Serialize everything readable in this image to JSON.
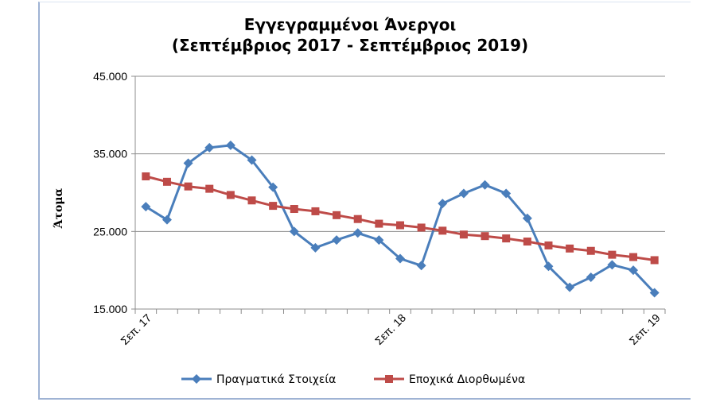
{
  "chart_data": {
    "type": "line",
    "title": "Εγγεγραμμένοι Άνεργοι",
    "subtitle": "(Σεπτέμβριος 2017 - Σεπτέμβριος 2019)",
    "ylabel": "Άτομα",
    "xlabel": "",
    "ylim": [
      15000,
      45000
    ],
    "yticks": [
      15000,
      25000,
      35000,
      45000
    ],
    "ytick_labels": [
      "15.000",
      "25.000",
      "35.000",
      "45.000"
    ],
    "x_tick_labels": [
      {
        "index": 0,
        "label": "Σεπ. 17"
      },
      {
        "index": 12,
        "label": "Σεπ. 18"
      },
      {
        "index": 24,
        "label": "Σεπ. 19"
      }
    ],
    "grid": "horizontal",
    "legend_position": "bottom",
    "series": [
      {
        "name": "Πραγματικά Στοιχεία",
        "color": "#4a7ebb",
        "marker": "diamond",
        "values": [
          28200,
          26500,
          33800,
          35800,
          36100,
          34200,
          30700,
          25000,
          22900,
          23900,
          24800,
          23900,
          21500,
          20600,
          28600,
          29900,
          31000,
          29900,
          26700,
          20500,
          17800,
          19100,
          20700,
          20000,
          17100
        ]
      },
      {
        "name": "Εποχικά Διορθωμένα",
        "color": "#be4b48",
        "marker": "square",
        "values": [
          32100,
          31400,
          30800,
          30500,
          29700,
          29000,
          28300,
          27900,
          27600,
          27100,
          26600,
          26000,
          25800,
          25500,
          25100,
          24600,
          24400,
          24100,
          23700,
          23200,
          22800,
          22500,
          22000,
          21700,
          21300
        ]
      }
    ]
  }
}
